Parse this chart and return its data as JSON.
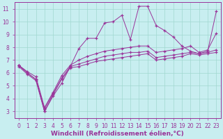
{
  "xlabel": "Windchill (Refroidissement éolien,°C)",
  "bg_color": "#c8eef0",
  "grid_color": "#a0d8d0",
  "line_color": "#993399",
  "xlim": [
    -0.5,
    23.5
  ],
  "ylim": [
    2.5,
    11.5
  ],
  "xticks": [
    0,
    1,
    2,
    3,
    4,
    5,
    6,
    7,
    8,
    9,
    10,
    11,
    12,
    13,
    14,
    15,
    16,
    17,
    18,
    19,
    20,
    21,
    22,
    23
  ],
  "yticks": [
    3,
    4,
    5,
    6,
    7,
    8,
    9,
    10,
    11
  ],
  "series": [
    {
      "x": [
        0,
        1,
        2,
        3,
        4,
        5,
        6,
        7,
        8,
        9,
        10,
        11,
        12,
        13,
        14,
        15,
        16,
        17,
        18,
        19,
        20,
        21,
        22,
        23
      ],
      "y": [
        6.6,
        6.0,
        5.5,
        3.0,
        4.2,
        5.2,
        6.5,
        7.9,
        8.7,
        8.7,
        9.9,
        10.0,
        10.5,
        8.6,
        11.2,
        11.2,
        9.7,
        9.3,
        8.8,
        8.1,
        7.7,
        7.5,
        7.7,
        10.8
      ]
    },
    {
      "x": [
        0,
        1,
        2,
        3,
        4,
        5,
        6,
        7,
        8,
        9,
        10,
        11,
        12,
        13,
        14,
        15,
        16,
        17,
        18,
        19,
        20,
        21,
        22,
        23
      ],
      "y": [
        6.6,
        6.1,
        5.7,
        3.3,
        4.5,
        5.8,
        6.6,
        7.0,
        7.3,
        7.5,
        7.7,
        7.8,
        7.9,
        8.0,
        8.1,
        8.1,
        7.6,
        7.7,
        7.8,
        7.9,
        8.1,
        7.6,
        7.8,
        9.1
      ]
    },
    {
      "x": [
        0,
        1,
        2,
        3,
        4,
        5,
        6,
        7,
        8,
        9,
        10,
        11,
        12,
        13,
        14,
        15,
        16,
        17,
        18,
        19,
        20,
        21,
        22,
        23
      ],
      "y": [
        6.6,
        6.0,
        5.5,
        3.2,
        4.4,
        5.6,
        6.5,
        6.7,
        6.9,
        7.1,
        7.3,
        7.4,
        7.5,
        7.6,
        7.6,
        7.7,
        7.2,
        7.3,
        7.4,
        7.5,
        7.6,
        7.5,
        7.6,
        7.8
      ]
    },
    {
      "x": [
        0,
        1,
        2,
        3,
        4,
        5,
        6,
        7,
        8,
        9,
        10,
        11,
        12,
        13,
        14,
        15,
        16,
        17,
        18,
        19,
        20,
        21,
        22,
        23
      ],
      "y": [
        6.5,
        5.9,
        5.4,
        3.0,
        4.3,
        5.5,
        6.4,
        6.5,
        6.7,
        6.9,
        7.0,
        7.1,
        7.2,
        7.3,
        7.4,
        7.5,
        7.0,
        7.1,
        7.2,
        7.3,
        7.5,
        7.4,
        7.5,
        7.6
      ]
    }
  ],
  "tick_fontsize": 5.5,
  "label_fontsize": 6.5
}
